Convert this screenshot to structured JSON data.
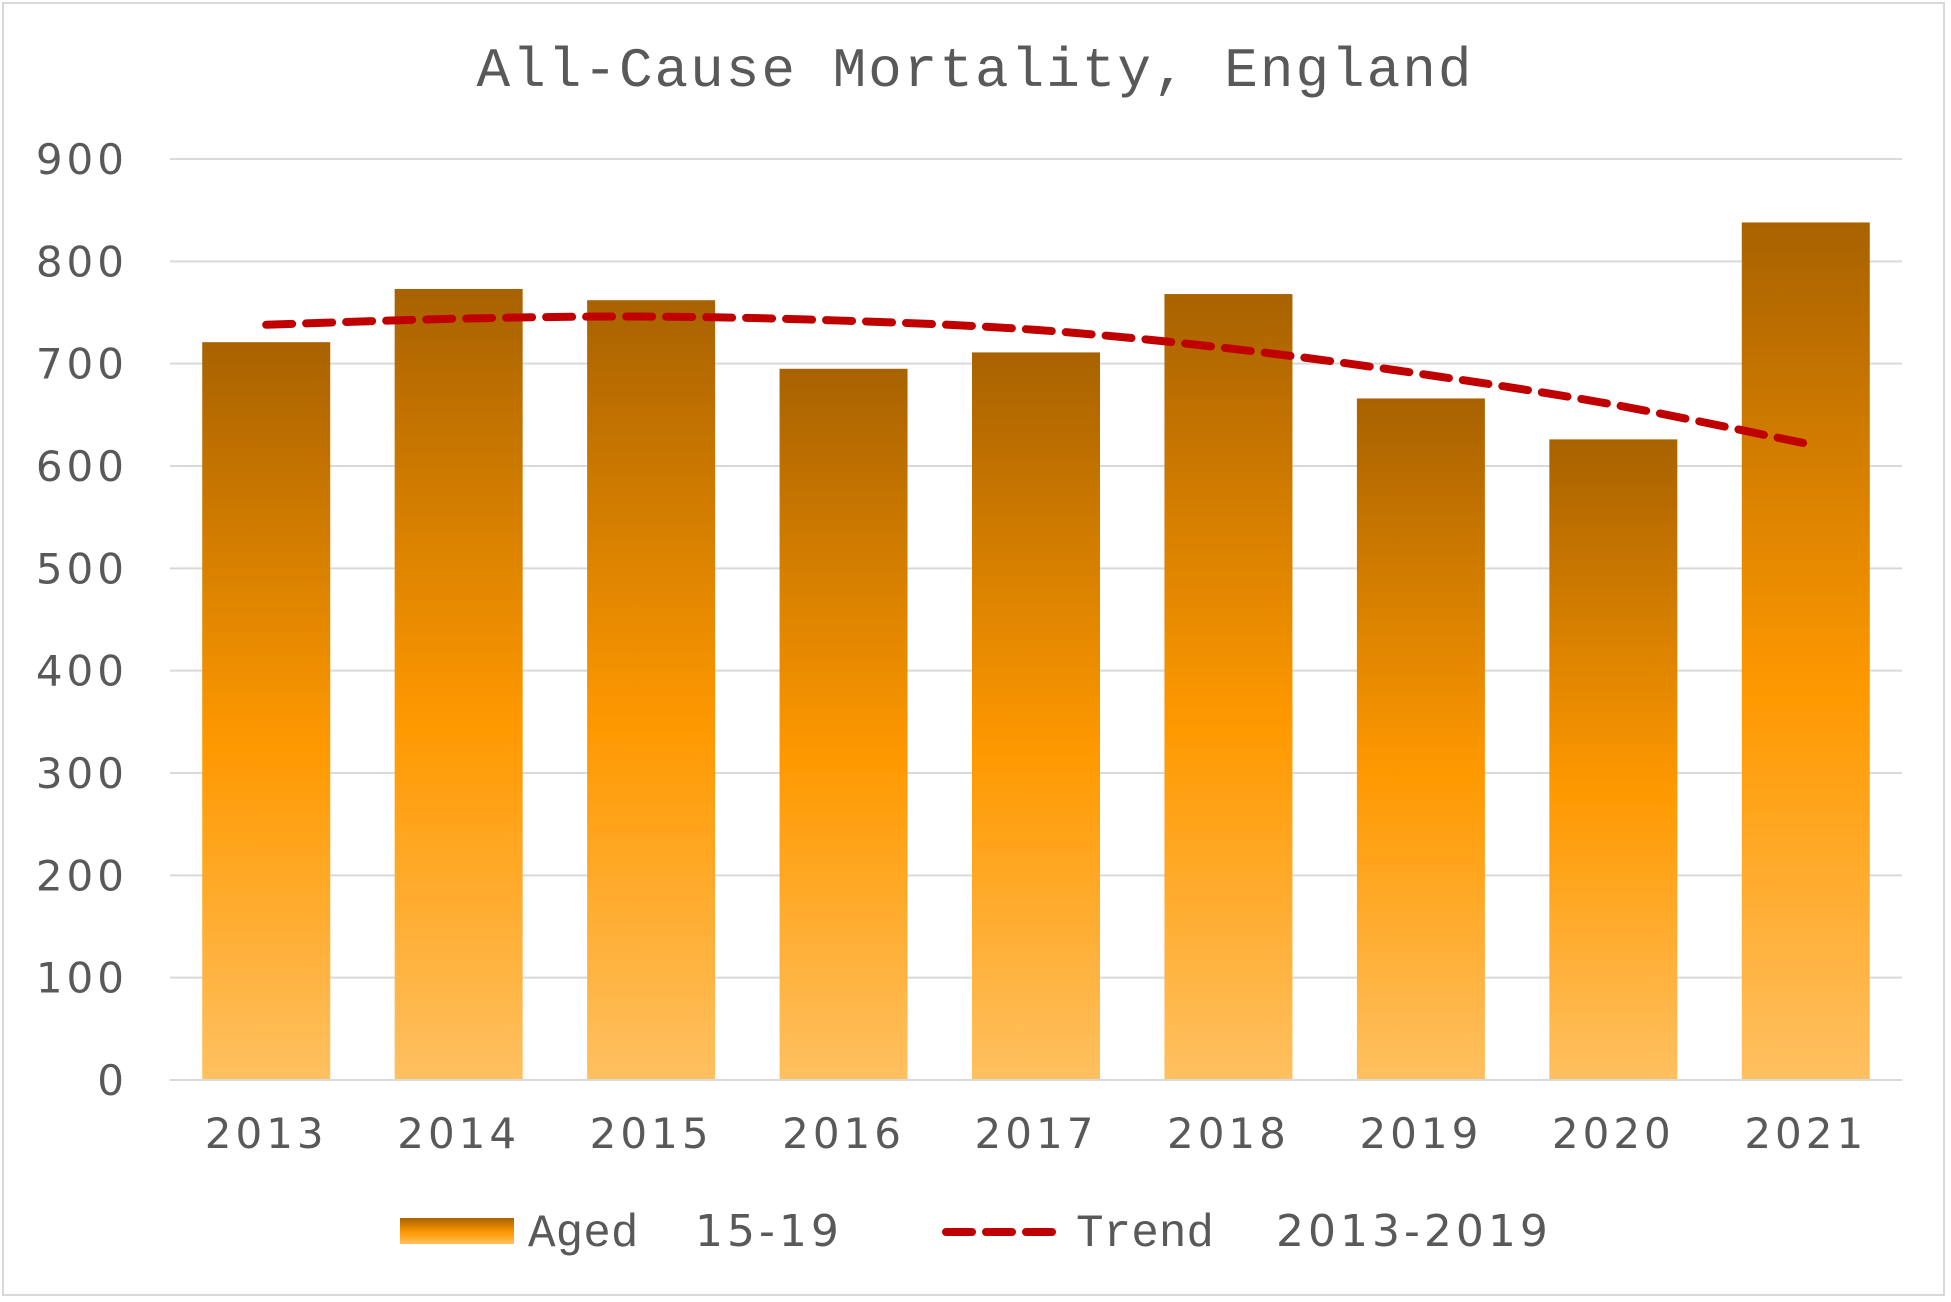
{
  "chart_data": {
    "type": "bar",
    "title": "All-Cause Mortality, England",
    "categories": [
      "2013",
      "2014",
      "2015",
      "2016",
      "2017",
      "2018",
      "2019",
      "2020",
      "2021"
    ],
    "series": [
      {
        "name": "Aged 15-19",
        "legend_prefix": "Aged",
        "legend_suffix": "15-19",
        "type": "bar",
        "values": [
          721,
          773,
          762,
          695,
          711,
          768,
          666,
          626,
          838
        ]
      },
      {
        "name": "Trend 2013-2019",
        "legend_prefix": "Trend",
        "legend_suffix": "2013-2019",
        "type": "line",
        "style": "dashed",
        "values": [
          738,
          744,
          746,
          742,
          733,
          715,
          690,
          660,
          622
        ]
      }
    ],
    "ylim": [
      0,
      900
    ],
    "yticks": [
      0,
      100,
      200,
      300,
      400,
      500,
      600,
      700,
      800,
      900
    ],
    "grid": true,
    "legend_position": "bottom",
    "colors": {
      "bar_top": "#a86200",
      "bar_mid": "#ff9900",
      "bar_bottom": "#ffc060",
      "trend": "#c00000",
      "grid": "#d9d9d9",
      "text": "#595959"
    }
  }
}
